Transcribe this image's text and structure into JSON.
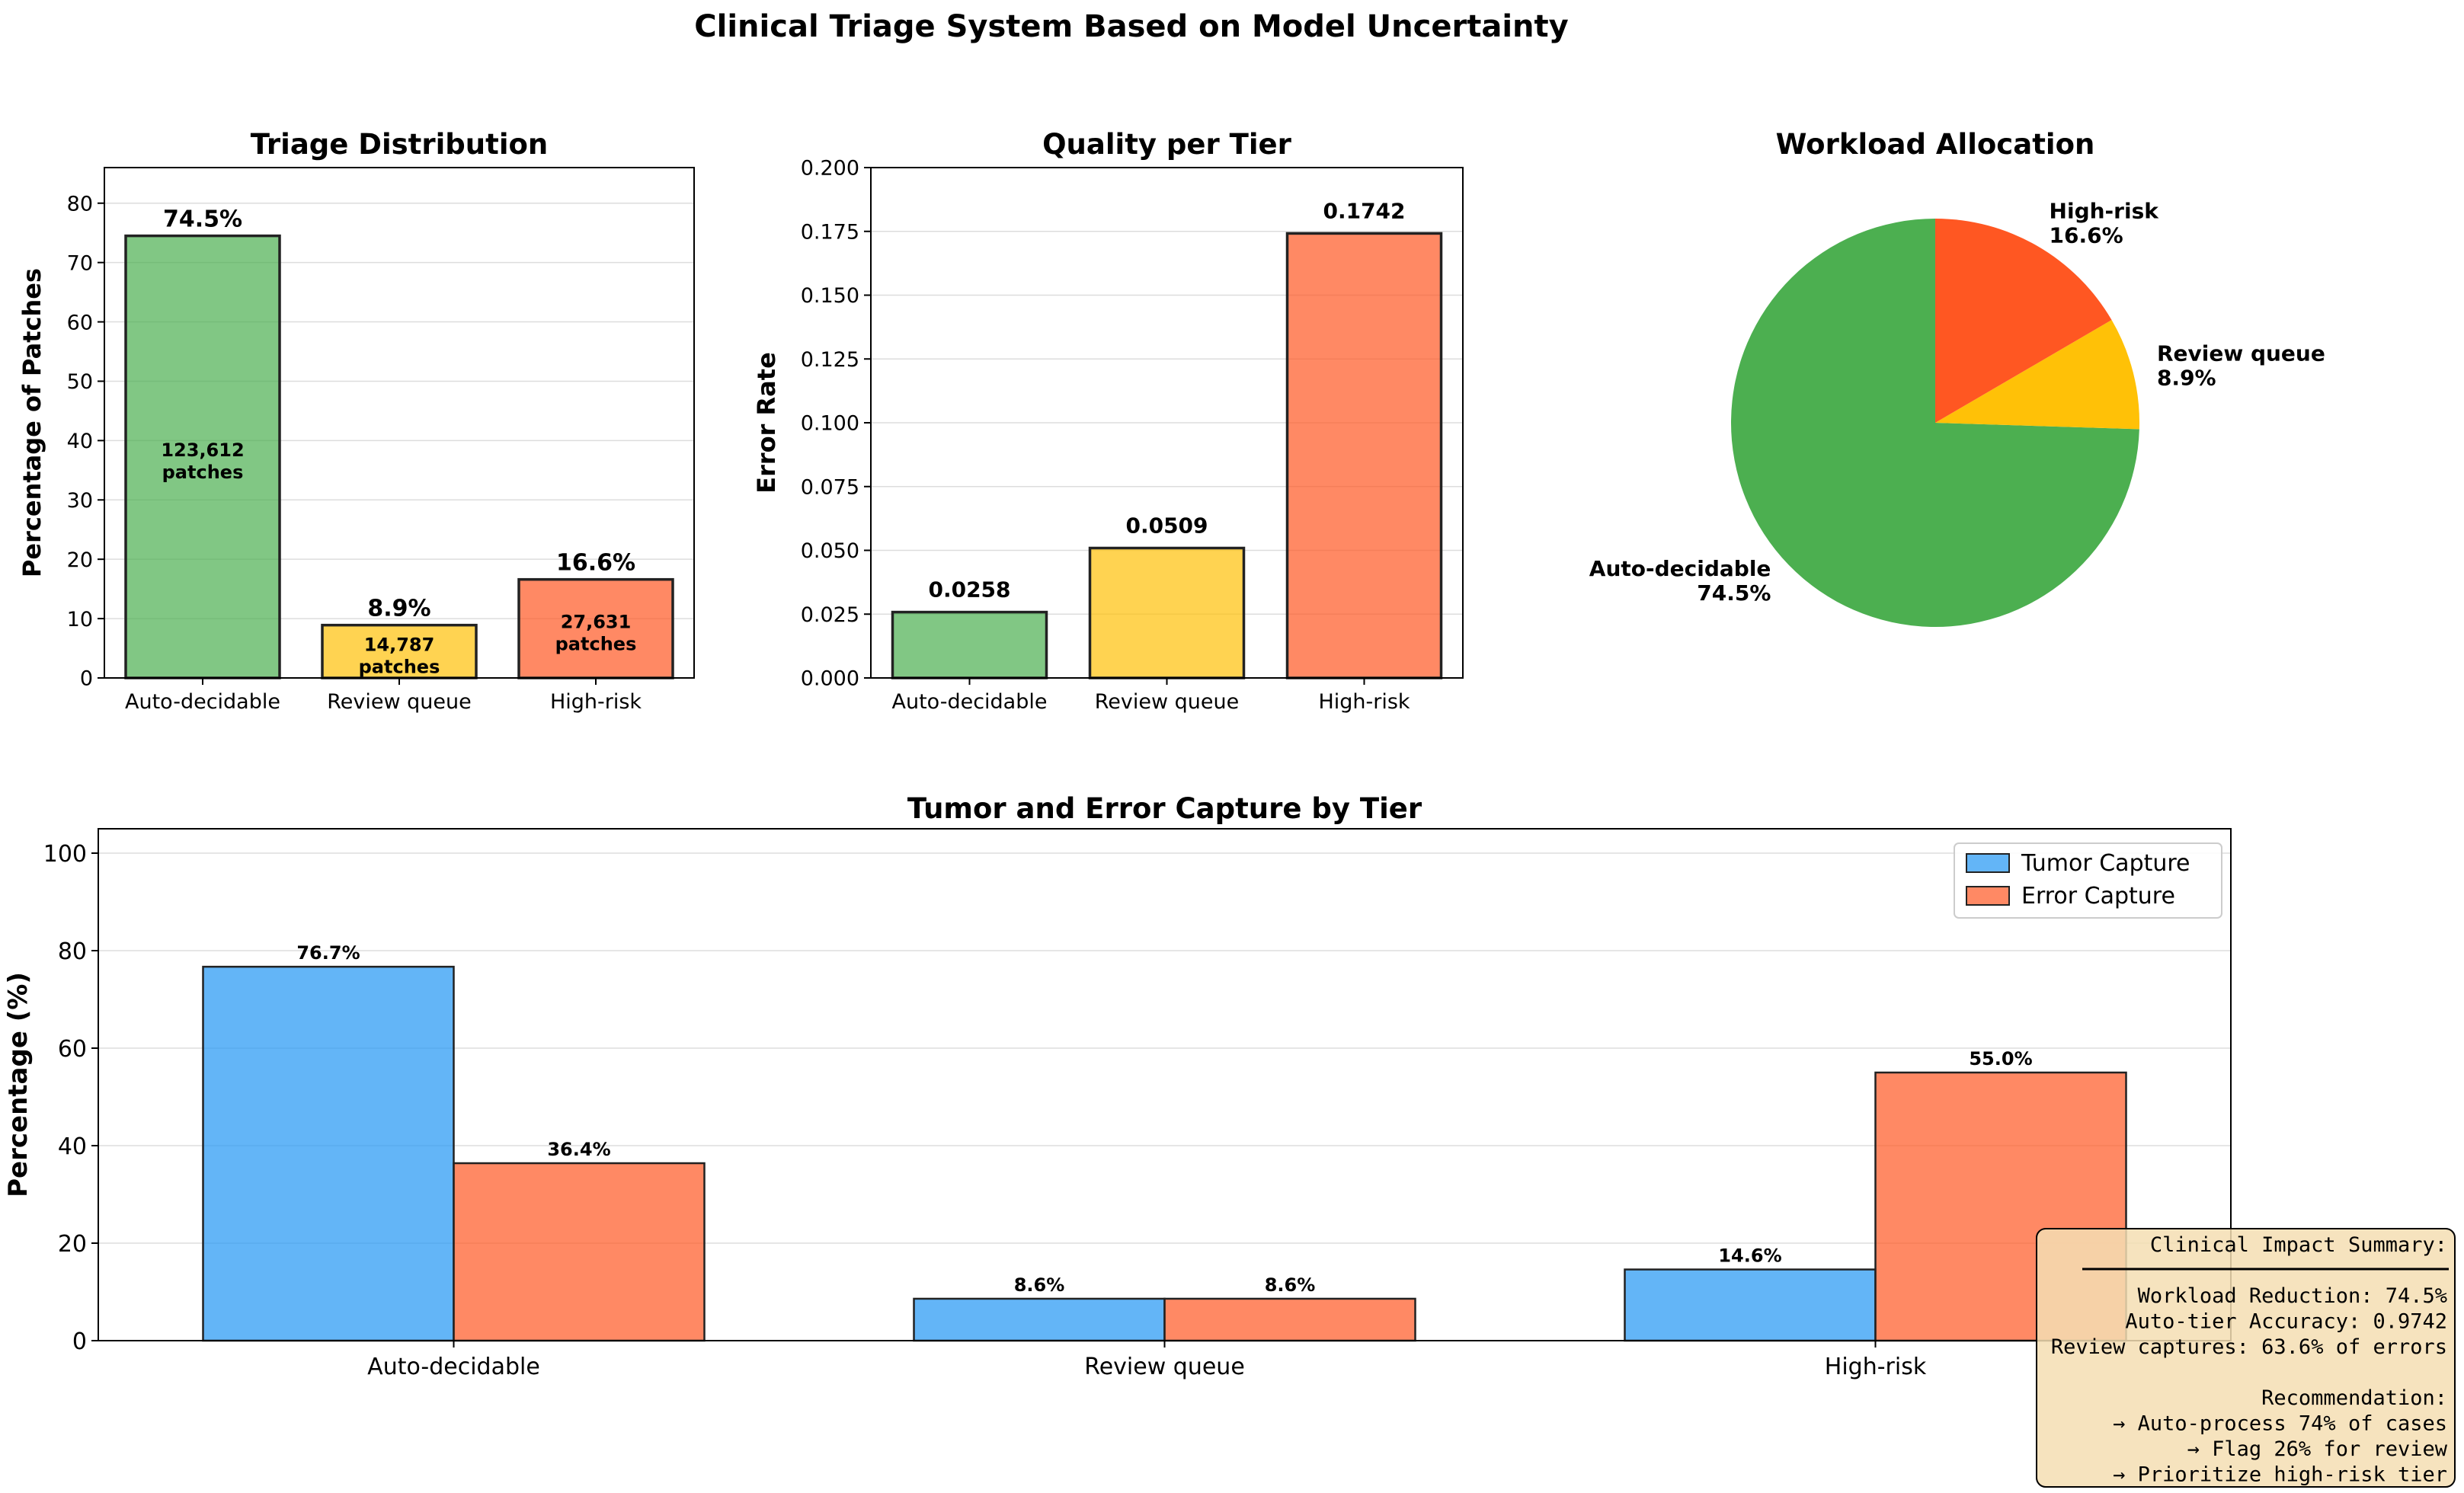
{
  "suptitle": "Clinical Triage System Based on Model Uncertainty",
  "colors": {
    "auto": "#4CAF50",
    "review": "#FFC107",
    "high": "#FF5722",
    "tumor": "#2196F3",
    "error": "#FF5722",
    "box_fill": "#F5DEB3",
    "box_edge": "#000000",
    "grid": "#dddddd"
  },
  "chart_data": [
    {
      "id": "triage",
      "type": "bar",
      "title": "Triage Distribution",
      "xlabel": "",
      "ylabel": "Percentage of Patches",
      "categories": [
        "Auto-decidable",
        "Review queue",
        "High-risk"
      ],
      "values": [
        74.5,
        8.9,
        16.6
      ],
      "value_labels": [
        "74.5%",
        "8.9%",
        "16.6%"
      ],
      "count_labels": [
        [
          "123,612",
          "patches"
        ],
        [
          "14,787",
          "patches"
        ],
        [
          "27,631",
          "patches"
        ]
      ],
      "ylim": [
        0,
        86
      ],
      "yticks": [
        0,
        10,
        20,
        30,
        40,
        50,
        60,
        70,
        80
      ],
      "ytick_labels": [
        "0",
        "10",
        "20",
        "30",
        "40",
        "50",
        "60",
        "70",
        "80"
      ],
      "grid": true
    },
    {
      "id": "quality",
      "type": "bar",
      "title": "Quality per Tier",
      "xlabel": "",
      "ylabel": "Error Rate",
      "categories": [
        "Auto-decidable",
        "Review queue",
        "High-risk"
      ],
      "values": [
        0.0258,
        0.0509,
        0.1742
      ],
      "value_labels": [
        "0.0258",
        "0.0509",
        "0.1742"
      ],
      "ylim": [
        0,
        0.2
      ],
      "yticks": [
        0,
        0.025,
        0.05,
        0.075,
        0.1,
        0.125,
        0.15,
        0.175,
        0.2
      ],
      "ytick_labels": [
        "0.000",
        "0.025",
        "0.050",
        "0.075",
        "0.100",
        "0.125",
        "0.150",
        "0.175",
        "0.200"
      ],
      "grid": true
    },
    {
      "id": "workload",
      "type": "pie",
      "title": "Workload Allocation",
      "labels": [
        "Auto-decidable",
        "Review queue",
        "High-risk"
      ],
      "values": [
        74.5,
        8.9,
        16.6
      ],
      "pct_labels": [
        "74.5%",
        "8.9%",
        "16.6%"
      ]
    },
    {
      "id": "capture",
      "type": "bar",
      "title": "Tumor and Error Capture by Tier",
      "xlabel": "",
      "ylabel": "Percentage (%)",
      "categories": [
        "Auto-decidable",
        "Review queue",
        "High-risk"
      ],
      "series": [
        {
          "name": "Tumor Capture",
          "values": [
            76.7,
            8.6,
            14.6
          ],
          "value_labels": [
            "76.7%",
            "8.6%",
            "14.6%"
          ]
        },
        {
          "name": "Error Capture",
          "values": [
            36.4,
            8.6,
            55.0
          ],
          "value_labels": [
            "36.4%",
            "8.6%",
            "55.0%"
          ]
        }
      ],
      "ylim": [
        0,
        105
      ],
      "yticks": [
        0,
        20,
        40,
        60,
        80,
        100
      ],
      "ytick_labels": [
        "0",
        "20",
        "40",
        "60",
        "80",
        "100"
      ],
      "legend_loc": "top-right",
      "grid": true
    }
  ],
  "summary_box": {
    "lines": [
      "Clinical Impact Summary:",
      "",
      "Workload Reduction: 74.5%",
      "Auto-tier Accuracy: 0.9742",
      "Review captures: 63.6% of errors",
      "",
      "Recommendation:",
      "→ Auto-process 74% of cases",
      "→ Flag 26% for review",
      "→ Prioritize high-risk tier"
    ]
  }
}
